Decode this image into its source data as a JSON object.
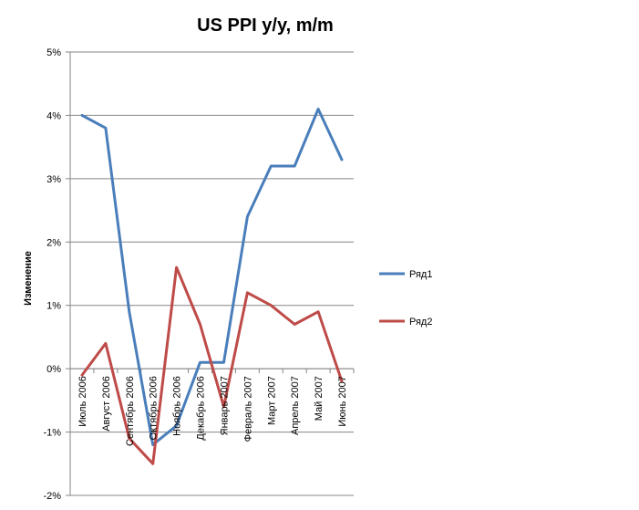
{
  "chart_data": {
    "type": "line",
    "title": "US PPI y/y, m/m",
    "xlabel": "",
    "ylabel": "Изменение",
    "categories": [
      "Июль 2006",
      "Август 2006",
      "Сентябрь 2006",
      "Октябрь 2006",
      "Ноябрь 2006",
      "Декабрь 2006",
      "Январь 2007",
      "Февраль 2007",
      "Март 2007",
      "Апрель 2007",
      "Май 2007",
      "Июнь 2007"
    ],
    "series": [
      {
        "name": "Ряд1",
        "color": "#4a7ebb",
        "values": [
          4.0,
          3.8,
          0.9,
          -1.2,
          -0.9,
          0.1,
          0.1,
          2.4,
          3.2,
          3.2,
          4.1,
          3.3
        ]
      },
      {
        "name": "Ряд2",
        "color": "#be4b48",
        "values": [
          -0.1,
          0.4,
          -1.1,
          -1.5,
          1.6,
          0.7,
          -0.6,
          1.2,
          1.0,
          0.7,
          0.9,
          -0.2
        ]
      }
    ],
    "ylim": [
      -2,
      5
    ],
    "yticks": [
      5,
      4,
      3,
      2,
      1,
      0,
      -1,
      -2
    ],
    "ytick_labels": [
      "5%",
      "4%",
      "3%",
      "2%",
      "1%",
      "0%",
      "-1%",
      "-2%"
    ],
    "grid": true,
    "legend_position": "right",
    "gridline_color": "#868686",
    "axis_color": "#868686"
  }
}
